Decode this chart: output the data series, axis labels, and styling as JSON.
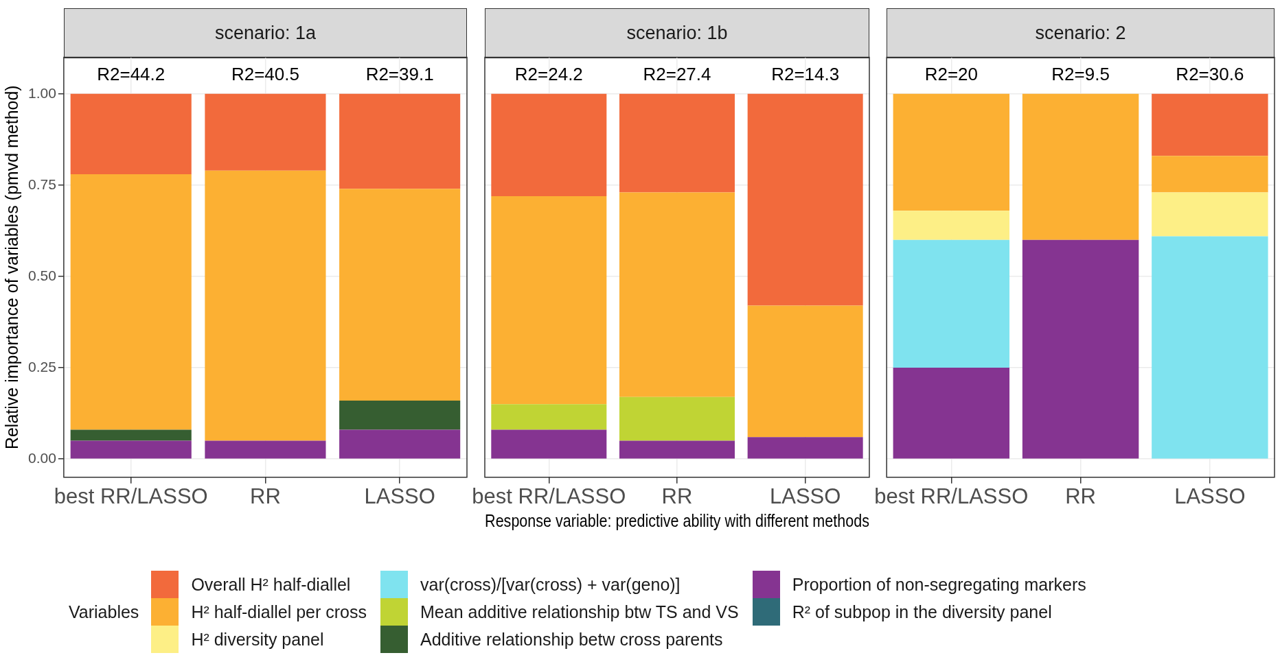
{
  "chart_data": [
    {
      "type": "bar",
      "title": "scenario: 1a",
      "ylabel": "Relative importance of variables (pmvd method)",
      "legend_title": "Variables",
      "categories": [
        "best RR/LASSO",
        "RR",
        "LASSO"
      ],
      "stacked": true,
      "legend": "bottom",
      "grid": true,
      "ylim": [
        -0.05,
        1.1
      ],
      "yticks": [
        {
          "value": 0,
          "label": "0.00"
        },
        {
          "value": 0.25,
          "label": "0.25"
        },
        {
          "value": 0.5,
          "label": "0.50"
        },
        {
          "value": 0.75,
          "label": "0.75"
        },
        {
          "value": 1,
          "label": "1.00"
        }
      ],
      "series": [
        {
          "name": "R² of subpop in the diversity panel",
          "color": "#2f6b78",
          "values": [
            0,
            0,
            0
          ]
        },
        {
          "name": "Proportion of non-segregating markers",
          "color": "#853491",
          "values": [
            0.05,
            0.05,
            0.08
          ]
        },
        {
          "name": "Additive relationship betw cross parents",
          "color": "#365e31",
          "values": [
            0.03,
            0,
            0.08
          ]
        },
        {
          "name": "Mean additive relationship btw TS and VS",
          "color": "#c0d434",
          "values": [
            0,
            0,
            0
          ]
        },
        {
          "name": "var(cross)/[var(cross) + var(geno)]",
          "color": "#7fe3ef",
          "values": [
            0,
            0,
            0
          ]
        },
        {
          "name": "H² diversity panel",
          "color": "#fdef86",
          "values": [
            0,
            0,
            0
          ]
        },
        {
          "name": "H² half-diallel per cross",
          "color": "#fcb033",
          "values": [
            0.7,
            0.74,
            0.58
          ]
        },
        {
          "name": "Overall H² half-diallel",
          "color": "#f26a3c",
          "values": [
            0.22,
            0.21,
            0.26
          ]
        }
      ],
      "annotations": [
        "R2=44.2",
        "R2=40.5",
        "R2=39.1"
      ]
    },
    {
      "type": "bar",
      "title": "scenario: 1b",
      "xlabel": "Response variable: predictive ability with different methods",
      "categories": [
        "best RR/LASSO",
        "RR",
        "LASSO"
      ],
      "stacked": true,
      "grid": true,
      "tick_labels": "x",
      "ylim": [
        -0.05,
        1.1
      ],
      "yticks": [
        0,
        0.25,
        0.5,
        0.75,
        1
      ],
      "series": [
        {
          "color": "#2f6b78",
          "values": [
            0,
            0,
            0
          ]
        },
        {
          "color": "#853491",
          "values": [
            0.08,
            0.05,
            0.06
          ]
        },
        {
          "color": "#365e31",
          "values": [
            0,
            0,
            0
          ]
        },
        {
          "color": "#c0d434",
          "values": [
            0.07,
            0.12,
            0
          ]
        },
        {
          "color": "#7fe3ef",
          "values": [
            0,
            0,
            0
          ]
        },
        {
          "color": "#fdef86",
          "values": [
            0,
            0,
            0
          ]
        },
        {
          "color": "#fcb033",
          "values": [
            0.57,
            0.56,
            0.36
          ]
        },
        {
          "color": "#f26a3c",
          "values": [
            0.28,
            0.27,
            0.58
          ]
        }
      ],
      "annotations": [
        "R2=24.2",
        "R2=27.4",
        "R2=14.3"
      ]
    },
    {
      "type": "bar",
      "title": "scenario: 2",
      "categories": [
        "best RR/LASSO",
        "RR",
        "LASSO"
      ],
      "stacked": true,
      "grid": true,
      "tick_labels": "x",
      "ylim": [
        -0.05,
        1.1
      ],
      "yticks": [
        0,
        0.25,
        0.5,
        0.75,
        1
      ],
      "series": [
        {
          "color": "#2f6b78",
          "values": [
            0,
            0,
            0
          ]
        },
        {
          "color": "#853491",
          "values": [
            0.25,
            0.6,
            0
          ]
        },
        {
          "color": "#365e31",
          "values": [
            0,
            0,
            0
          ]
        },
        {
          "color": "#c0d434",
          "values": [
            0,
            0,
            0
          ]
        },
        {
          "color": "#7fe3ef",
          "values": [
            0.35,
            0,
            0.61
          ]
        },
        {
          "color": "#fdef86",
          "values": [
            0.08,
            0,
            0.12
          ]
        },
        {
          "color": "#fcb033",
          "values": [
            0.32,
            0.4,
            0.1
          ]
        },
        {
          "color": "#f26a3c",
          "values": [
            0,
            0,
            0.17
          ]
        }
      ],
      "annotations": [
        "R2=20",
        "R2=9.5",
        "R2=30.6"
      ]
    }
  ]
}
